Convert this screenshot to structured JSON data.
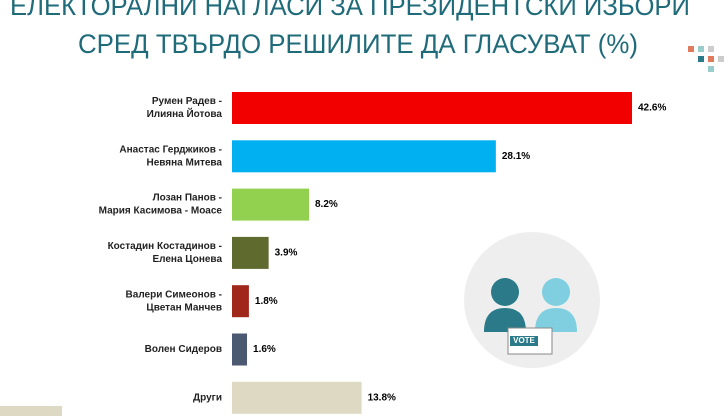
{
  "chart_data": {
    "type": "barh",
    "title": [
      "ЕЛЕКТОРАЛНИ НАГЛАСИ ЗА ПРЕЗИДЕНТСКИ ИЗБОРИ",
      "СРЕД ТВЪРДО РЕШИЛИТЕ ДА ГЛАСУВАТ (%)"
    ],
    "categories": [
      [
        "Румен Радев -",
        "Илияна Йотова"
      ],
      [
        "Анастас Герджиков -",
        "Невяна Митева"
      ],
      [
        "Лозан Панов -",
        "Мария Касимова - Моасе"
      ],
      [
        "Костадин Костадинов -",
        "Елена Цонева"
      ],
      [
        "Валери Симеонов -",
        "Цветан Манчев"
      ],
      [
        "Волен Сидеров"
      ],
      [
        "Други"
      ]
    ],
    "values": [
      42.6,
      28.1,
      8.2,
      3.9,
      1.8,
      1.6,
      13.8
    ],
    "value_labels": [
      "42.6%",
      "28.1%",
      "8.2%",
      "3.9%",
      "1.8%",
      "1.6%",
      "13.8%"
    ],
    "colors": [
      "#f20000",
      "#00b0f0",
      "#92d050",
      "#5f6a2f",
      "#a0281a",
      "#4b5a70",
      "#ddd9c3"
    ],
    "icon_text": "VOTE"
  }
}
